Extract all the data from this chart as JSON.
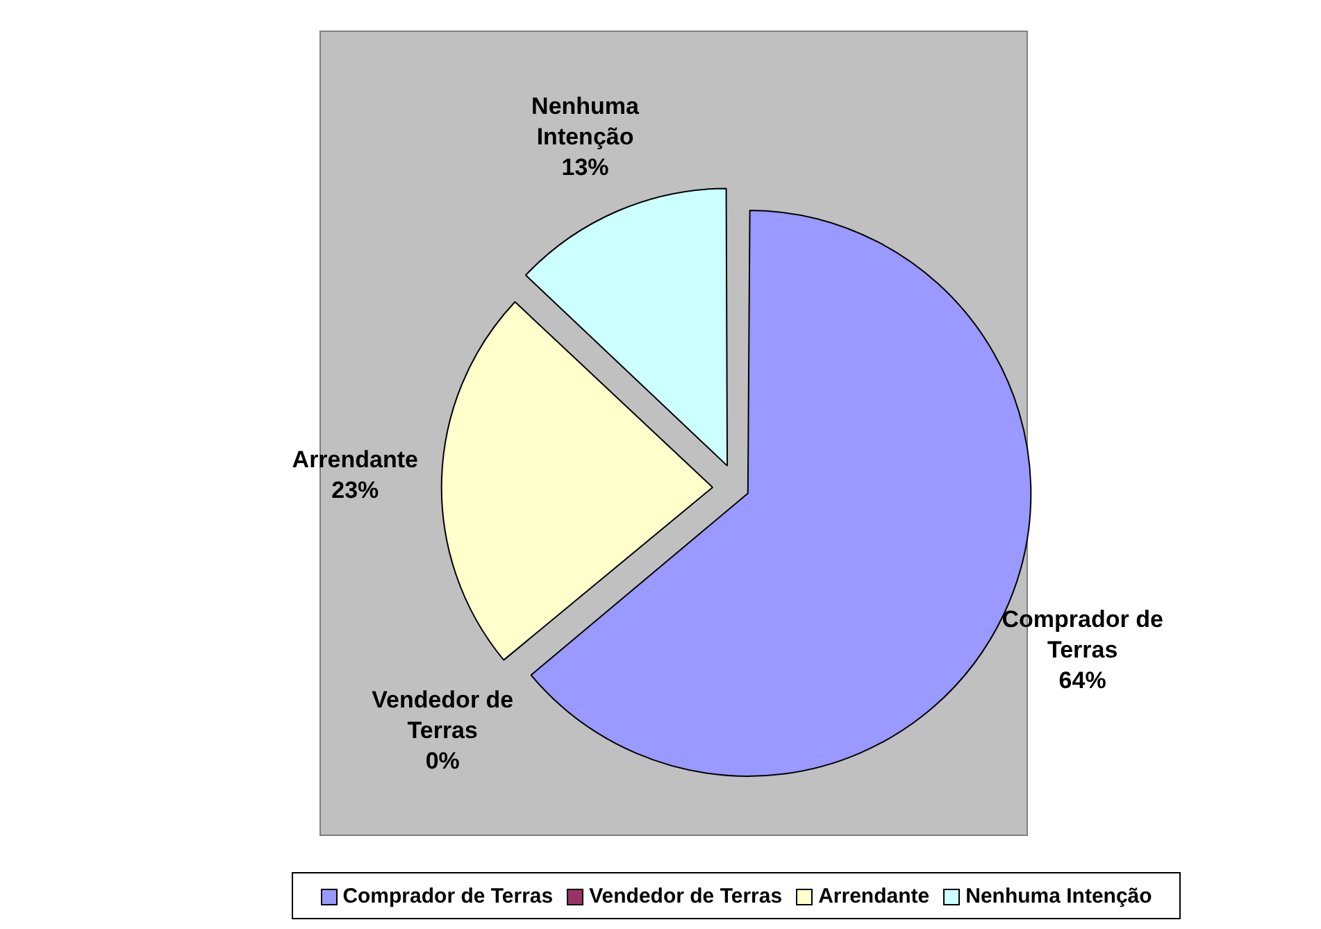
{
  "chart_data": {
    "type": "pie",
    "categories": [
      "Comprador de Terras",
      "Vendedor de Terras",
      "Arrendante",
      "Nenhuma Intenção"
    ],
    "values": [
      64,
      0,
      23,
      13
    ],
    "colors": [
      "#9999ff",
      "#993366",
      "#ffffcc",
      "#ccffff"
    ],
    "value_labels": [
      "64%",
      "0%",
      "23%",
      "13%"
    ],
    "legend": "bottom"
  }
}
